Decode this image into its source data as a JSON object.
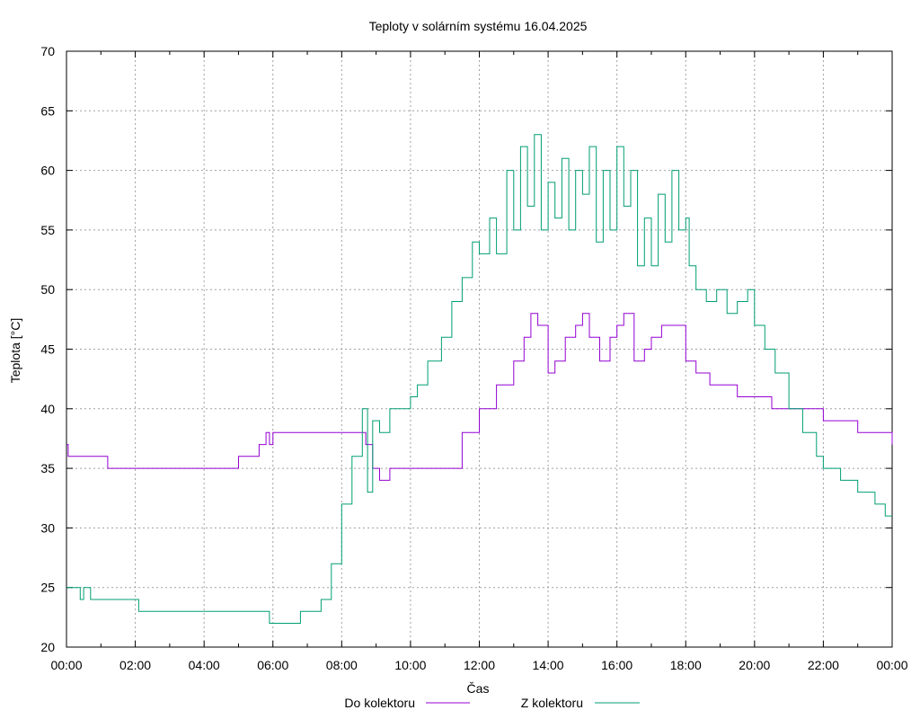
{
  "chart_data": {
    "type": "line",
    "title": "Teploty v solárním systému 16.04.2025",
    "xlabel": "Čas",
    "ylabel": "Teplota [°C]",
    "xlim": [
      0,
      24
    ],
    "ylim": [
      20,
      70
    ],
    "grid": true,
    "legend_position": "bottom",
    "x_ticks": [
      {
        "value": 0,
        "label": "00:00"
      },
      {
        "value": 2,
        "label": "02:00"
      },
      {
        "value": 4,
        "label": "04:00"
      },
      {
        "value": 6,
        "label": "06:00"
      },
      {
        "value": 8,
        "label": "08:00"
      },
      {
        "value": 10,
        "label": "10:00"
      },
      {
        "value": 12,
        "label": "12:00"
      },
      {
        "value": 14,
        "label": "14:00"
      },
      {
        "value": 16,
        "label": "16:00"
      },
      {
        "value": 18,
        "label": "18:00"
      },
      {
        "value": 20,
        "label": "20:00"
      },
      {
        "value": 22,
        "label": "22:00"
      },
      {
        "value": 24,
        "label": "00:00"
      }
    ],
    "y_ticks": [
      20,
      25,
      30,
      35,
      40,
      45,
      50,
      55,
      60,
      65,
      70
    ],
    "series": [
      {
        "name": "Do kolektoru",
        "color": "#9400d3",
        "x": [
          0.0,
          0.05,
          1.2,
          4.4,
          5.0,
          5.6,
          5.8,
          5.9,
          6.0,
          6.2,
          8.2,
          8.7,
          8.9,
          9.1,
          9.4,
          10.0,
          11.0,
          11.5,
          12.0,
          12.5,
          13.0,
          13.3,
          13.5,
          13.7,
          14.0,
          14.2,
          14.5,
          14.8,
          15.0,
          15.2,
          15.5,
          15.8,
          16.0,
          16.2,
          16.5,
          16.8,
          17.0,
          17.3,
          17.6,
          18.0,
          18.3,
          18.7,
          19.0,
          19.5,
          20.0,
          20.5,
          21.0,
          21.5,
          22.0,
          22.7,
          23.0,
          23.8,
          24.0
        ],
        "y": [
          37,
          36,
          35,
          35,
          36,
          37,
          38,
          37,
          38,
          38,
          38,
          37,
          35,
          34,
          35,
          35,
          35,
          38,
          40,
          42,
          44,
          46,
          48,
          47,
          43,
          44,
          46,
          47,
          48,
          46,
          44,
          46,
          47,
          48,
          44,
          45,
          46,
          47,
          47,
          44,
          43,
          42,
          42,
          41,
          41,
          40,
          40,
          40,
          39,
          39,
          38,
          38,
          37
        ]
      },
      {
        "name": "Z kolektoru",
        "color": "#009e73",
        "x": [
          0.0,
          0.4,
          0.5,
          0.7,
          1.0,
          2.0,
          2.1,
          3.0,
          4.0,
          5.0,
          5.8,
          5.9,
          6.0,
          6.8,
          7.4,
          7.7,
          8.0,
          8.3,
          8.6,
          8.75,
          8.9,
          9.1,
          9.4,
          9.8,
          10.0,
          10.2,
          10.5,
          10.9,
          11.2,
          11.5,
          11.8,
          12.0,
          12.3,
          12.5,
          12.8,
          13.0,
          13.2,
          13.4,
          13.6,
          13.8,
          14.0,
          14.2,
          14.4,
          14.6,
          14.8,
          15.0,
          15.2,
          15.4,
          15.6,
          15.8,
          16.0,
          16.2,
          16.4,
          16.6,
          16.8,
          17.0,
          17.2,
          17.4,
          17.6,
          17.8,
          18.0,
          18.1,
          18.3,
          18.6,
          18.9,
          19.2,
          19.5,
          19.8,
          20.0,
          20.3,
          20.6,
          21.0,
          21.4,
          21.8,
          22.0,
          22.5,
          23.0,
          23.5,
          23.8,
          24.0
        ],
        "y": [
          25,
          24,
          25,
          24,
          24,
          24,
          23,
          23,
          23,
          23,
          23,
          22,
          22,
          23,
          24,
          27,
          32,
          36,
          40,
          33,
          39,
          38,
          40,
          40,
          41,
          42,
          44,
          46,
          49,
          51,
          54,
          53,
          56,
          53,
          60,
          55,
          62,
          57,
          63,
          55,
          59,
          56,
          61,
          55,
          60,
          58,
          62,
          54,
          60,
          55,
          62,
          57,
          60,
          52,
          56,
          52,
          58,
          54,
          60,
          55,
          56,
          52,
          50,
          49,
          50,
          48,
          49,
          50,
          47,
          45,
          43,
          40,
          38,
          36,
          35,
          34,
          33,
          32,
          31,
          31
        ]
      }
    ]
  }
}
